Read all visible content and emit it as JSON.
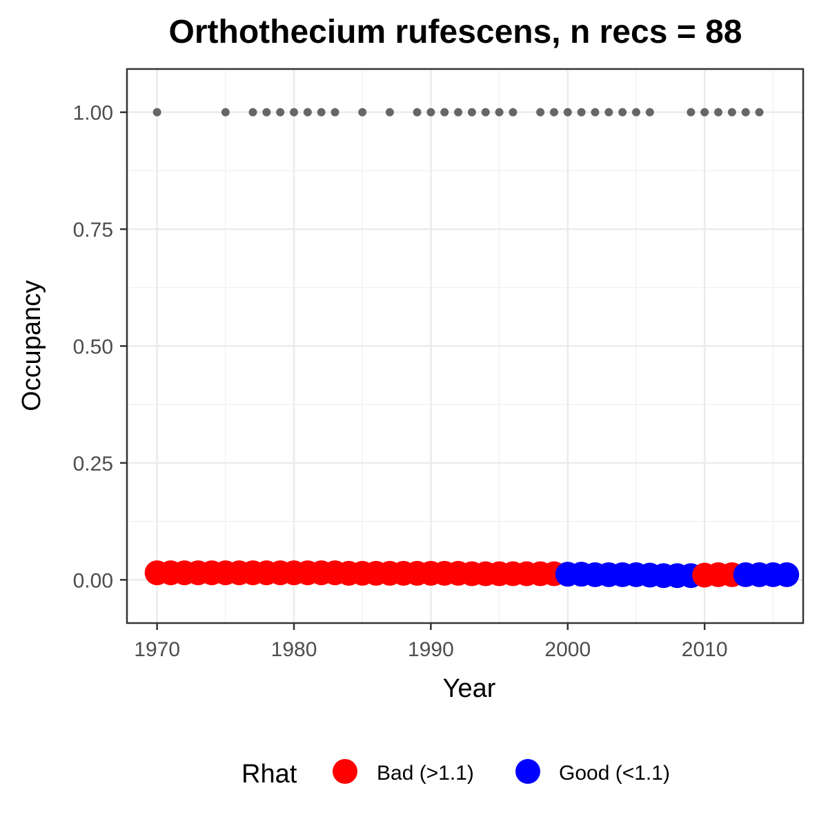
{
  "chart_data": {
    "type": "scatter",
    "title": "Orthothecium rufescens, n recs = 88",
    "xlabel": "Year",
    "ylabel": "Occupancy",
    "xlim": [
      1967.8,
      2017.2
    ],
    "ylim": [
      -0.0925,
      1.0925
    ],
    "x_ticks": [
      1970,
      1980,
      1990,
      2000,
      2010
    ],
    "y_ticks": [
      0.0,
      0.25,
      0.5,
      0.75,
      1.0
    ],
    "y_tick_labels": [
      "0.00",
      "0.25",
      "0.50",
      "0.75",
      "1.00"
    ],
    "grid": true,
    "legend": {
      "title": "Rhat",
      "position": "bottom",
      "entries": [
        {
          "label": "Bad (>1.1)",
          "color": "#ff0000"
        },
        {
          "label": "Good (<1.1)",
          "color": "#0000ff"
        }
      ]
    },
    "series": [
      {
        "name": "Bad (>1.1)",
        "color": "#ff0000",
        "points": [
          [
            1970,
            0.015
          ],
          [
            1971,
            0.015
          ],
          [
            1972,
            0.015
          ],
          [
            1973,
            0.015
          ],
          [
            1974,
            0.015
          ],
          [
            1975,
            0.015
          ],
          [
            1976,
            0.015
          ],
          [
            1977,
            0.015
          ],
          [
            1978,
            0.015
          ],
          [
            1979,
            0.015
          ],
          [
            1980,
            0.015
          ],
          [
            1981,
            0.015
          ],
          [
            1982,
            0.015
          ],
          [
            1983,
            0.015
          ],
          [
            1984,
            0.014
          ],
          [
            1985,
            0.014
          ],
          [
            1986,
            0.014
          ],
          [
            1987,
            0.014
          ],
          [
            1988,
            0.014
          ],
          [
            1989,
            0.014
          ],
          [
            1990,
            0.014
          ],
          [
            1991,
            0.014
          ],
          [
            1992,
            0.014
          ],
          [
            1993,
            0.013
          ],
          [
            1994,
            0.013
          ],
          [
            1995,
            0.013
          ],
          [
            1996,
            0.013
          ],
          [
            1997,
            0.013
          ],
          [
            1998,
            0.013
          ],
          [
            1999,
            0.013
          ],
          [
            2010,
            0.01
          ],
          [
            2011,
            0.011
          ],
          [
            2012,
            0.011
          ]
        ]
      },
      {
        "name": "Good (<1.1)",
        "color": "#0000ff",
        "points": [
          [
            2000,
            0.012
          ],
          [
            2001,
            0.012
          ],
          [
            2002,
            0.011
          ],
          [
            2003,
            0.011
          ],
          [
            2004,
            0.011
          ],
          [
            2005,
            0.011
          ],
          [
            2006,
            0.01
          ],
          [
            2007,
            0.009
          ],
          [
            2008,
            0.009
          ],
          [
            2009,
            0.009
          ],
          [
            2013,
            0.011
          ],
          [
            2014,
            0.011
          ],
          [
            2015,
            0.011
          ],
          [
            2016,
            0.011
          ]
        ]
      }
    ],
    "records": {
      "color": "#666666",
      "y": 1.0,
      "years": [
        1970,
        1975,
        1977,
        1978,
        1979,
        1980,
        1981,
        1982,
        1983,
        1985,
        1987,
        1989,
        1990,
        1991,
        1992,
        1993,
        1994,
        1995,
        1996,
        1998,
        1999,
        2000,
        2001,
        2002,
        2003,
        2004,
        2005,
        2006,
        2009,
        2010,
        2011,
        2012,
        2013,
        2014
      ]
    }
  }
}
